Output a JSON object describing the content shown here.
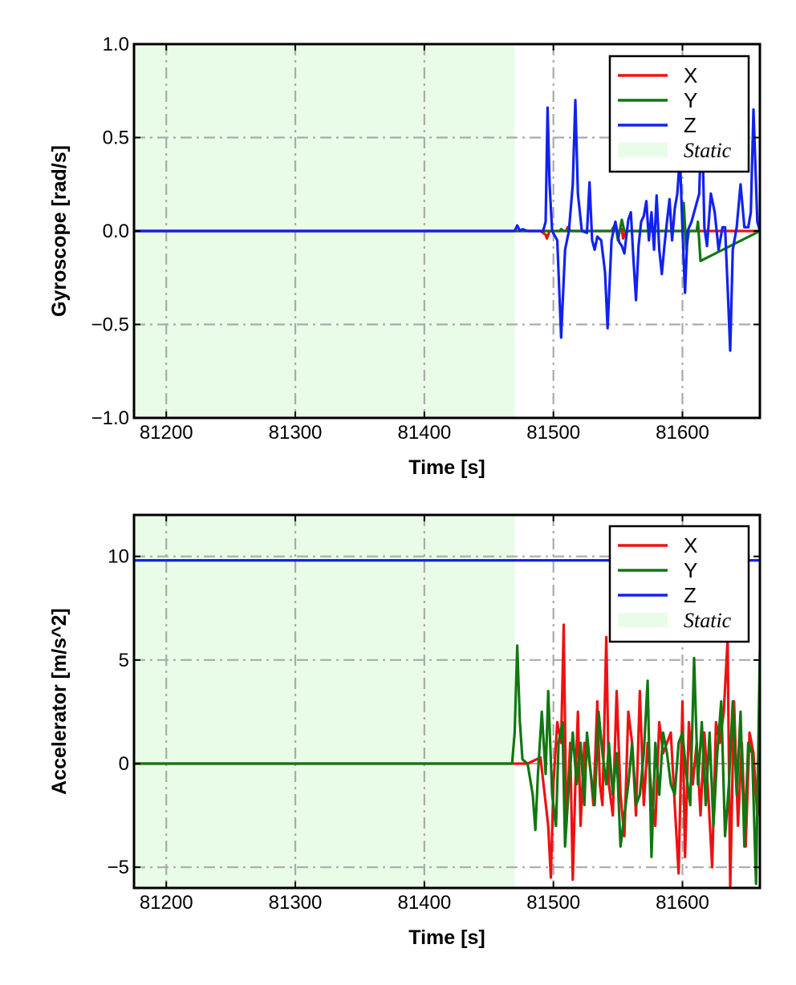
{
  "chart_data": [
    {
      "type": "line",
      "title": "",
      "xlabel": "Time [s]",
      "ylabel": "Gyroscope [rad/s]",
      "xlim": [
        81175,
        81660
      ],
      "ylim": [
        -1.0,
        1.0
      ],
      "xticks": [
        81200,
        81300,
        81400,
        81500,
        81600
      ],
      "xtick_labels": [
        "81200",
        "81300",
        "81400",
        "81500",
        "81600"
      ],
      "yticks": [
        -1.0,
        -0.5,
        0.0,
        0.5,
        1.0
      ],
      "ytick_labels": [
        "−1.0",
        "−0.5",
        "0.0",
        "0.5",
        "1.0"
      ],
      "grid": true,
      "legend_position": "top-right",
      "static_region": {
        "label": "Static",
        "x_start": 81175,
        "x_end": 81470,
        "color": "#e8fce8"
      },
      "series": [
        {
          "name": "X",
          "color": "#ee1111",
          "x": [
            81175,
            81470,
            81490,
            81494,
            81495,
            81497,
            81500,
            81510,
            81511,
            81512,
            81514,
            81540,
            81552,
            81553,
            81554,
            81556,
            81580,
            81660
          ],
          "y": [
            0,
            0,
            0,
            -0.02,
            -0.04,
            0,
            0,
            0,
            0.02,
            0.01,
            0,
            0,
            0,
            0.01,
            -0.04,
            0,
            0,
            0
          ]
        },
        {
          "name": "Y",
          "color": "#117711",
          "x": [
            81175,
            81470,
            81505,
            81506,
            81508,
            81545,
            81548,
            81550,
            81553,
            81555,
            81600,
            81601,
            81603,
            81605,
            81611,
            81612,
            81614,
            81660
          ],
          "y": [
            0,
            0,
            0,
            0.01,
            0,
            0,
            0.04,
            -0.05,
            0.06,
            0,
            0,
            0.15,
            -0.1,
            0,
            0,
            0.05,
            -0.16,
            0
          ]
        },
        {
          "name": "Z",
          "color": "#1122ee",
          "x": [
            81175,
            81470,
            81472,
            81474,
            81476,
            81480,
            81492,
            81494,
            81495.5,
            81497,
            81499,
            81503,
            81506,
            81509,
            81512,
            81515,
            81517,
            81519,
            81522,
            81526,
            81528,
            81530,
            81532,
            81534,
            81537,
            81540,
            81542,
            81545,
            81548,
            81551,
            81553,
            81555,
            81558,
            81560,
            81562,
            81564,
            81566,
            81568,
            81570,
            81572,
            81574,
            81576,
            81578,
            81580,
            81582,
            81584,
            81586,
            81588,
            81590,
            81592,
            81594,
            81596,
            81598,
            81600,
            81602,
            81604,
            81607,
            81609,
            81611,
            81613,
            81615,
            81617,
            81619,
            81622,
            81625,
            81628,
            81631,
            81633,
            81635,
            81637,
            81639,
            81642,
            81645,
            81648,
            81651,
            81653,
            81655,
            81658,
            81660
          ],
          "y": [
            0,
            0,
            0.03,
            0,
            0.01,
            0,
            0,
            0.05,
            0.66,
            0.25,
            0,
            -0.05,
            -0.57,
            -0.1,
            0,
            0.25,
            0.7,
            0.2,
            0,
            -0.01,
            0.26,
            -0.05,
            -0.1,
            -0.03,
            -0.05,
            -0.22,
            -0.52,
            -0.05,
            0.05,
            -0.06,
            -0.08,
            -0.12,
            0.06,
            0.1,
            -0.15,
            -0.37,
            -0.08,
            0.05,
            0.08,
            0.16,
            -0.05,
            0.1,
            -0.1,
            0.19,
            -0.1,
            -0.23,
            -0.08,
            0.05,
            0.17,
            -0.05,
            0.12,
            0.2,
            0.4,
            0.01,
            -0.33,
            0,
            0.05,
            0.1,
            0.15,
            0.2,
            0.65,
            0.02,
            -0.08,
            0.2,
            0.1,
            -0.1,
            0.02,
            0.02,
            -0.3,
            -0.64,
            -0.1,
            0.02,
            0.25,
            0.02,
            0.02,
            0.1,
            0.65,
            0.05,
            0
          ]
        }
      ]
    },
    {
      "type": "line",
      "title": "",
      "xlabel": "Time [s]",
      "ylabel": "Accelerator [m/s^2]",
      "xlim": [
        81175,
        81660
      ],
      "ylim": [
        -6,
        12
      ],
      "xticks": [
        81200,
        81300,
        81400,
        81500,
        81600
      ],
      "xtick_labels": [
        "81200",
        "81300",
        "81400",
        "81500",
        "81600"
      ],
      "yticks": [
        -5,
        0,
        5,
        10
      ],
      "ytick_labels": [
        "−5",
        "0",
        "5",
        "10"
      ],
      "grid": true,
      "legend_position": "top-right",
      "static_region": {
        "label": "Static",
        "x_start": 81175,
        "x_end": 81470,
        "color": "#e8fce8"
      },
      "series": [
        {
          "name": "X",
          "color": "#ee1111",
          "x": [
            81175,
            81470,
            81480,
            81490,
            81496,
            81498,
            81500,
            81503,
            81506,
            81508,
            81510,
            81513,
            81515,
            81517,
            81519,
            81521,
            81524,
            81527,
            81529,
            81531,
            81534,
            81536,
            81538,
            81541,
            81543,
            81546,
            81549,
            81552,
            81555,
            81558,
            81561,
            81564,
            81567,
            81570,
            81573,
            81576,
            81579,
            81582,
            81585,
            81588,
            81591,
            81594,
            81597,
            81600,
            81602,
            81605,
            81608,
            81611,
            81614,
            81617,
            81620,
            81623,
            81626,
            81629,
            81632,
            81635,
            81637,
            81640,
            81643,
            81646,
            81649,
            81652,
            81655,
            81658,
            81660
          ],
          "y": [
            0,
            0,
            0,
            0.3,
            -3,
            -5.5,
            -1,
            2,
            1,
            6.7,
            -3,
            1,
            -5.6,
            -1,
            2.5,
            -3,
            1,
            0.5,
            -0.5,
            -2,
            3,
            -1,
            -2,
            6.1,
            -1,
            -2.5,
            3.5,
            -1.5,
            -3.5,
            2.5,
            1,
            -2.5,
            3.5,
            -2,
            1,
            -1.5,
            -3,
            2,
            0.5,
            1,
            1.5,
            -2,
            -5.3,
            3,
            -4.5,
            2,
            -1,
            1,
            -2.5,
            1.5,
            -1.5,
            -5,
            2,
            1,
            2.5,
            6,
            -6,
            3,
            -3,
            1,
            -4,
            1.5,
            0.5,
            -2.5,
            0
          ]
        },
        {
          "name": "Y",
          "color": "#117711",
          "x": [
            81175,
            81468,
            81470,
            81472,
            81474,
            81476,
            81480,
            81484,
            81486,
            81488,
            81491,
            81494,
            81496,
            81499,
            81502,
            81504,
            81507,
            81509,
            81512,
            81515,
            81518,
            81521,
            81524,
            81526,
            81529,
            81532,
            81535,
            81538,
            81541,
            81543,
            81546,
            81549,
            81552,
            81555,
            81558,
            81561,
            81564,
            81567,
            81570,
            81573,
            81576,
            81579,
            81582,
            81585,
            81588,
            81591,
            81594,
            81597,
            81600,
            81603,
            81606,
            81609,
            81612,
            81615,
            81618,
            81621,
            81624,
            81627,
            81630,
            81633,
            81636,
            81639,
            81642,
            81645,
            81648,
            81651,
            81654,
            81657,
            81660
          ],
          "y": [
            0,
            0,
            1.5,
            5.7,
            2,
            0.2,
            0,
            -1.5,
            -3.2,
            -0.5,
            2.5,
            -0.5,
            3.5,
            -1.5,
            -3,
            1,
            2,
            -4,
            -1,
            1.5,
            -1,
            1,
            -2,
            1.5,
            -0.5,
            -2,
            2.5,
            0.5,
            -1,
            1,
            -1.5,
            0.5,
            -4,
            -2.5,
            -1,
            1,
            -2,
            -1.5,
            0.5,
            4,
            -4.5,
            1,
            -1.5,
            1.5,
            0.5,
            -1,
            -1.5,
            1,
            1.5,
            -0.5,
            -2,
            5.1,
            -1,
            2,
            -2,
            1.5,
            -3,
            0.5,
            3,
            -3.5,
            -1,
            3,
            -1.5,
            2.5,
            -4,
            1,
            0.5,
            -5.8,
            5.5
          ]
        },
        {
          "name": "Z",
          "color": "#1122ee",
          "x": [
            81175,
            81660
          ],
          "y": [
            9.81,
            9.81
          ]
        }
      ]
    }
  ]
}
